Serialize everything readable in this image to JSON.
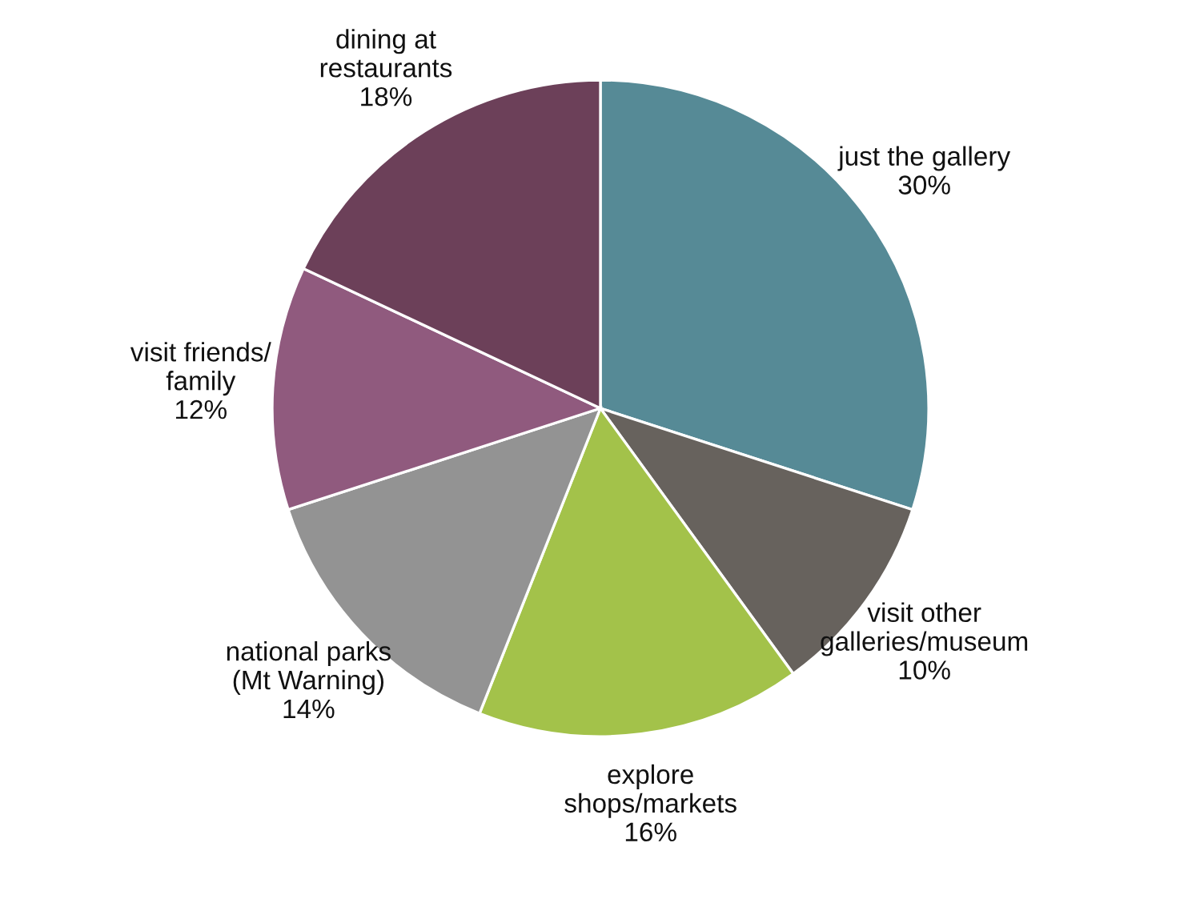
{
  "chart_data": {
    "type": "pie",
    "categories": [
      "just the gallery",
      "visit other\ngalleries/museum",
      "explore\nshops/markets",
      "national parks\n(Mt Warning)",
      "visit friends/\nfamily",
      "dining at\nrestaurants"
    ],
    "values": [
      30,
      10,
      16,
      14,
      12,
      18
    ],
    "value_labels": [
      "30%",
      "10%",
      "16%",
      "14%",
      "12%",
      "18%"
    ],
    "colors": [
      "#568a96",
      "#67625d",
      "#a3c24a",
      "#939393",
      "#905a7e",
      "#6c4059"
    ],
    "legend": false
  }
}
